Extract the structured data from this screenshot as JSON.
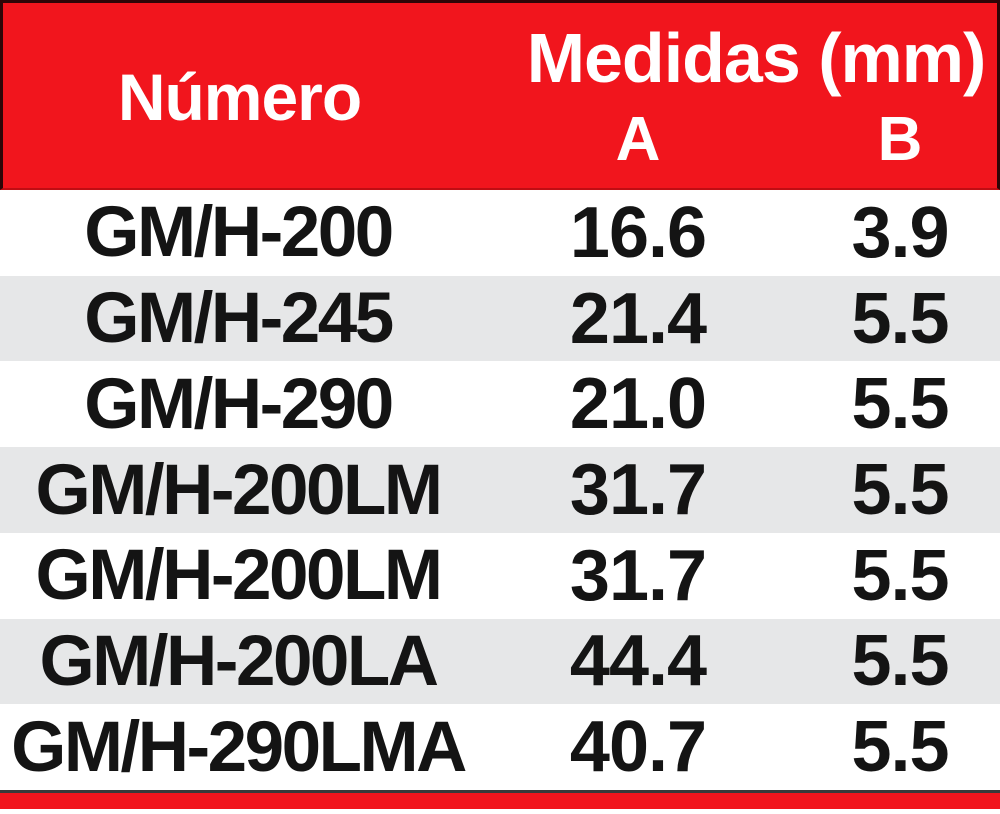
{
  "table": {
    "header": {
      "numero_label": "Número",
      "group_label": "Medidas (mm)",
      "col_a_label": "A",
      "col_b_label": "B"
    },
    "rows": [
      {
        "numero": "GM/H-200",
        "a": "16.6",
        "b": "3.9"
      },
      {
        "numero": "GM/H-245",
        "a": "21.4",
        "b": "5.5"
      },
      {
        "numero": "GM/H-290",
        "a": "21.0",
        "b": "5.5"
      },
      {
        "numero": "GM/H-200LM",
        "a": "31.7",
        "b": "5.5"
      },
      {
        "numero": "GM/H-200LM",
        "a": "31.7",
        "b": "5.5"
      },
      {
        "numero": "GM/H-200LA",
        "a": "44.4",
        "b": "5.5"
      },
      {
        "numero": "GM/H-290LMA",
        "a": "40.7",
        "b": "5.5"
      }
    ],
    "colors": {
      "header_bg": "#f1151d",
      "header_text": "#ffffff",
      "row_bg": "#ffffff",
      "row_alt_bg": "#e6e7e8",
      "row_text": "#141414",
      "footer_bar": "#f1151d",
      "dark_edge": "#2e0507"
    }
  },
  "chart_data": {
    "type": "table",
    "title": "",
    "column_group": "Medidas (mm)",
    "columns": [
      "Número",
      "A",
      "B"
    ],
    "rows": [
      [
        "GM/H-200",
        16.6,
        3.9
      ],
      [
        "GM/H-245",
        21.4,
        5.5
      ],
      [
        "GM/H-290",
        21.0,
        5.5
      ],
      [
        "GM/H-200LM",
        31.7,
        5.5
      ],
      [
        "GM/H-200LM",
        31.7,
        5.5
      ],
      [
        "GM/H-200LA",
        44.4,
        5.5
      ],
      [
        "GM/H-290LMA",
        40.7,
        5.5
      ]
    ],
    "layout_hints": {
      "header_bg": "#f1151d",
      "alternating_rows": true,
      "footer_accent_bar": true
    }
  }
}
